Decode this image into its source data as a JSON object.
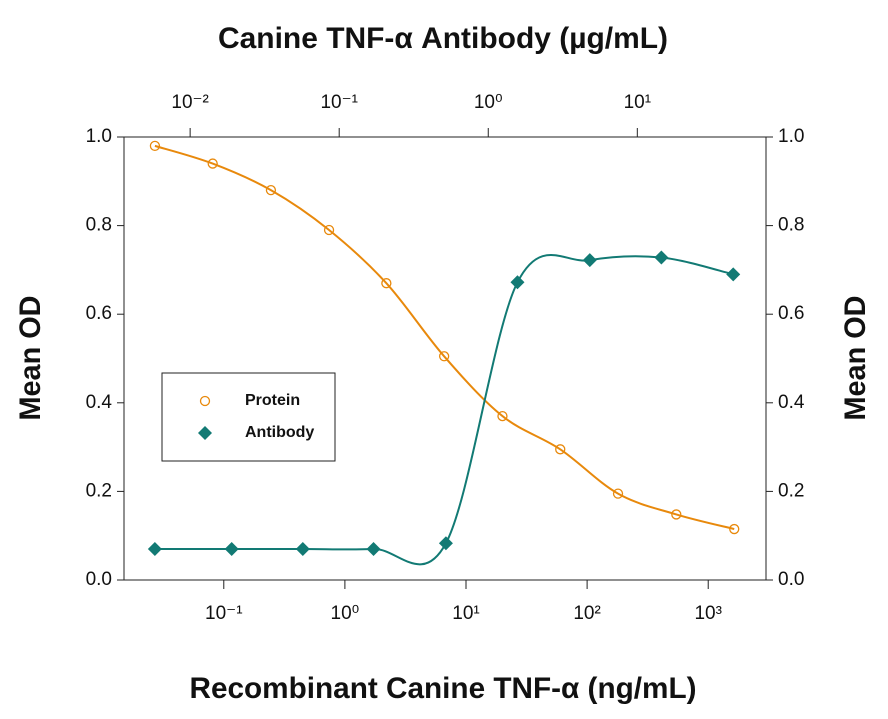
{
  "chart_data": {
    "type": "scatter",
    "title": "Canine TNF-α Antibody (µg/mL)",
    "xlabel": "Recombinant Canine TNF-α (ng/mL)",
    "ylabel": "Mean OD",
    "y2label": "Mean OD",
    "xscale": "log",
    "x2scale": "log",
    "xlim": [
      0.015,
      3000
    ],
    "xticks": [
      {
        "value": 0.1,
        "label": "10⁻¹"
      },
      {
        "value": 1,
        "label": "10⁰"
      },
      {
        "value": 10,
        "label": "10¹"
      },
      {
        "value": 100,
        "label": "10²"
      },
      {
        "value": 1000,
        "label": "10³"
      }
    ],
    "x2lim": [
      0.0036,
      73
    ],
    "x2ticks": [
      {
        "value": 0.01,
        "label": "10⁻²"
      },
      {
        "value": 0.1,
        "label": "10⁻¹"
      },
      {
        "value": 1,
        "label": "10⁰"
      },
      {
        "value": 10,
        "label": "10¹"
      }
    ],
    "ylim": [
      0,
      1
    ],
    "yticks": [
      {
        "value": 0,
        "label": "0.0"
      },
      0.2,
      0.4,
      0.6,
      0.8,
      {
        "value": 1,
        "label": "1.0"
      }
    ],
    "y2lim": [
      0,
      1
    ],
    "y2ticks": [
      {
        "value": 0,
        "label": "0.0"
      },
      0.2,
      0.4,
      0.6,
      0.8,
      {
        "value": 1,
        "label": "1.0"
      }
    ],
    "legend": "center-left",
    "series": [
      {
        "name": "Protein",
        "color": "#e8890c",
        "marker": "open-circle",
        "xaxis": "x",
        "x": [
          0.027,
          0.081,
          0.245,
          0.74,
          2.2,
          6.6,
          20,
          60,
          180,
          545,
          1640
        ],
        "values": [
          0.98,
          0.94,
          0.88,
          0.79,
          0.67,
          0.505,
          0.37,
          0.295,
          0.195,
          0.148,
          0.115
        ]
      },
      {
        "name": "Antibody",
        "color": "#127a74",
        "marker": "diamond",
        "xaxis": "x2",
        "x": [
          0.0058,
          0.019,
          0.057,
          0.17,
          0.52,
          1.57,
          4.8,
          14.5,
          44
        ],
        "values": [
          0.07,
          0.07,
          0.07,
          0.07,
          0.083,
          0.672,
          0.722,
          0.728,
          0.69
        ]
      }
    ]
  }
}
